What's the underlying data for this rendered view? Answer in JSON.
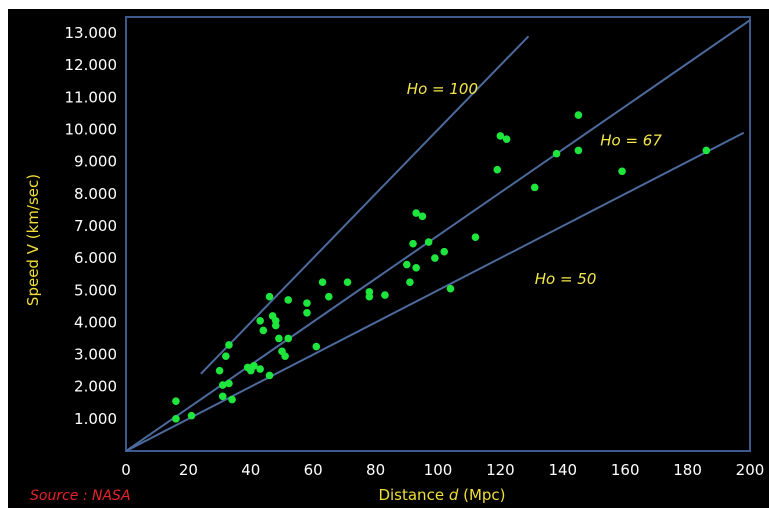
{
  "chart_data": {
    "type": "scatter",
    "title": "",
    "xlabel": "Distance d (Mpc)",
    "xlabel_main": "Distance ",
    "xlabel_var": "d",
    "xlabel_unit": " (Mpc)",
    "ylabel": "Speed V (km/sec)",
    "xlim": [
      0,
      200
    ],
    "ylim": [
      0,
      13500
    ],
    "x_ticks": [
      0,
      20,
      40,
      60,
      80,
      100,
      120,
      140,
      160,
      180,
      200
    ],
    "y_ticks": [
      1000,
      2000,
      3000,
      4000,
      5000,
      6000,
      7000,
      8000,
      9000,
      10000,
      11000,
      12000,
      13000
    ],
    "y_tick_labels": [
      "1.000",
      "2.000",
      "3.000",
      "4.000",
      "5.000",
      "6.000",
      "7.000",
      "8.000",
      "9.000",
      "10.000",
      "11.000",
      "12.000",
      "13.000"
    ],
    "grid": false,
    "colors": {
      "background": "#000000",
      "frame": "#3e5a8c",
      "points": "#1ee63c",
      "lines": "#4d6a9c",
      "labels": "#f1de38",
      "ticks": "#ffffff",
      "source": "#e8232a"
    },
    "lines": [
      {
        "label": "Ho = 100",
        "x": [
          24,
          129
        ],
        "y": [
          2400,
          12900
        ]
      },
      {
        "label": "Ho = 67",
        "x": [
          0,
          200
        ],
        "y": [
          0,
          13400
        ]
      },
      {
        "label": "Ho = 50",
        "x": [
          0,
          198
        ],
        "y": [
          0,
          9900
        ]
      }
    ],
    "line_labels": [
      {
        "text": "Ho = 100",
        "x": 90,
        "y": 11100
      },
      {
        "text": "Ho = 67",
        "x": 152,
        "y": 9500
      },
      {
        "text": "Ho = 50",
        "x": 131,
        "y": 5200
      }
    ],
    "points": [
      {
        "x": 16,
        "y": 1550
      },
      {
        "x": 16,
        "y": 1000
      },
      {
        "x": 21,
        "y": 1100
      },
      {
        "x": 30,
        "y": 2500
      },
      {
        "x": 31,
        "y": 1700
      },
      {
        "x": 31,
        "y": 2050
      },
      {
        "x": 32,
        "y": 2950
      },
      {
        "x": 33,
        "y": 3300
      },
      {
        "x": 33,
        "y": 2100
      },
      {
        "x": 34,
        "y": 1600
      },
      {
        "x": 39,
        "y": 2600
      },
      {
        "x": 40,
        "y": 2500
      },
      {
        "x": 41,
        "y": 2650
      },
      {
        "x": 43,
        "y": 2550
      },
      {
        "x": 43,
        "y": 4050
      },
      {
        "x": 44,
        "y": 3750
      },
      {
        "x": 46,
        "y": 4800
      },
      {
        "x": 46,
        "y": 2350
      },
      {
        "x": 47,
        "y": 4200
      },
      {
        "x": 48,
        "y": 3900
      },
      {
        "x": 48,
        "y": 4050
      },
      {
        "x": 49,
        "y": 3500
      },
      {
        "x": 50,
        "y": 3100
      },
      {
        "x": 51,
        "y": 2950
      },
      {
        "x": 52,
        "y": 3500
      },
      {
        "x": 52,
        "y": 4700
      },
      {
        "x": 58,
        "y": 4600
      },
      {
        "x": 58,
        "y": 4300
      },
      {
        "x": 61,
        "y": 3250
      },
      {
        "x": 63,
        "y": 5250
      },
      {
        "x": 65,
        "y": 4800
      },
      {
        "x": 71,
        "y": 5250
      },
      {
        "x": 78,
        "y": 4800
      },
      {
        "x": 78,
        "y": 4950
      },
      {
        "x": 83,
        "y": 4850
      },
      {
        "x": 90,
        "y": 5800
      },
      {
        "x": 91,
        "y": 5250
      },
      {
        "x": 92,
        "y": 6450
      },
      {
        "x": 93,
        "y": 7400
      },
      {
        "x": 93,
        "y": 5700
      },
      {
        "x": 95,
        "y": 7300
      },
      {
        "x": 97,
        "y": 6500
      },
      {
        "x": 99,
        "y": 6000
      },
      {
        "x": 102,
        "y": 6200
      },
      {
        "x": 104,
        "y": 5050
      },
      {
        "x": 112,
        "y": 6650
      },
      {
        "x": 119,
        "y": 8750
      },
      {
        "x": 120,
        "y": 9800
      },
      {
        "x": 122,
        "y": 9700
      },
      {
        "x": 131,
        "y": 8200
      },
      {
        "x": 138,
        "y": 9250
      },
      {
        "x": 145,
        "y": 10450
      },
      {
        "x": 145,
        "y": 9350
      },
      {
        "x": 159,
        "y": 8700
      },
      {
        "x": 186,
        "y": 9350
      }
    ]
  },
  "source_label": "Source : NASA"
}
